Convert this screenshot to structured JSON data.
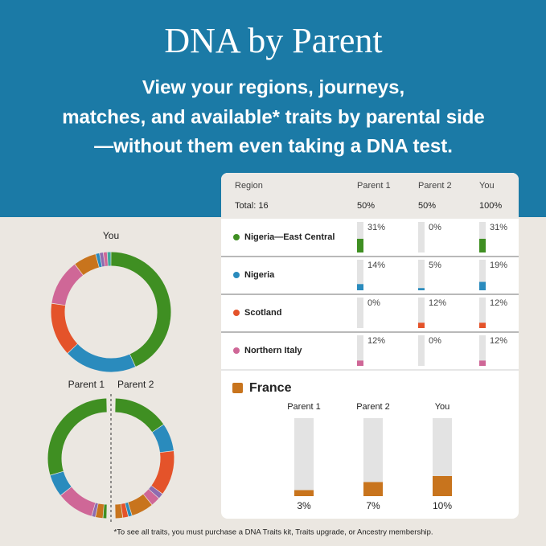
{
  "header": {
    "title": "DNA by Parent",
    "subtitle": [
      "View your regions, journeys,",
      "matches, and available* traits by parental side",
      "—without them even taking a DNA test."
    ]
  },
  "donuts": {
    "you": {
      "label": "You",
      "segments": [
        {
          "color": "#3f8f22",
          "value": 42
        },
        {
          "color": "#2a8bbd",
          "value": 19
        },
        {
          "color": "#e4532a",
          "value": 14
        },
        {
          "color": "#cf6797",
          "value": 12
        },
        {
          "color": "#c8741d",
          "value": 6
        },
        {
          "color": "#2a8bbd",
          "value": 1
        },
        {
          "color": "#8e6bb0",
          "value": 1
        },
        {
          "color": "#cf6797",
          "value": 1
        },
        {
          "color": "#3fa9a0",
          "value": 1
        }
      ]
    },
    "parent1": {
      "label": "Parent 1",
      "segments": [
        {
          "color": "#3f8f22",
          "value": 58
        },
        {
          "color": "#2a8bbd",
          "value": 12
        },
        {
          "color": "#cf6797",
          "value": 20
        },
        {
          "color": "#8e6bb0",
          "value": 2
        },
        {
          "color": "#c8741d",
          "value": 4
        },
        {
          "color": "#3f8f22",
          "value": 2
        }
      ]
    },
    "parent2": {
      "label": "Parent 2",
      "segments": [
        {
          "color": "#3f8f22",
          "value": 30
        },
        {
          "color": "#2a8bbd",
          "value": 15
        },
        {
          "color": "#e4532a",
          "value": 24
        },
        {
          "color": "#8e6bb0",
          "value": 3
        },
        {
          "color": "#cf6797",
          "value": 5
        },
        {
          "color": "#c8741d",
          "value": 12
        },
        {
          "color": "#2a8bbd",
          "value": 2
        },
        {
          "color": "#e4532a",
          "value": 3
        },
        {
          "color": "#c8741d",
          "value": 4
        }
      ]
    }
  },
  "table": {
    "columns": [
      "Region",
      "Parent 1",
      "Parent 2",
      "You"
    ],
    "total": [
      "Total: 16",
      "50%",
      "50%",
      "100%"
    ],
    "rows": [
      {
        "region": "Nigeria—East Central",
        "color": "#3f8f22",
        "values": [
          31,
          0,
          31
        ],
        "value_labels": [
          "31%",
          "0%",
          "31%"
        ]
      },
      {
        "region": "Nigeria",
        "color": "#2a8bbd",
        "values": [
          14,
          5,
          19
        ],
        "value_labels": [
          "14%",
          "5%",
          "19%"
        ]
      },
      {
        "region": "Scotland",
        "color": "#e4532a",
        "values": [
          0,
          12,
          12
        ],
        "value_labels": [
          "0%",
          "12%",
          "12%"
        ]
      },
      {
        "region": "Northern Italy",
        "color": "#cf6797",
        "values": [
          12,
          0,
          12
        ],
        "value_labels": [
          "12%",
          "0%",
          "12%"
        ]
      }
    ]
  },
  "detail": {
    "region": "France",
    "color": "#c8741d",
    "columns": [
      "Parent 1",
      "Parent 2",
      "You"
    ],
    "values": [
      3,
      7,
      10
    ],
    "value_labels": [
      "3%",
      "7%",
      "10%"
    ]
  },
  "footnote": "*To see all traits, you must purchase a DNA Traits kit, Traits upgrade, or Ancestry membership."
}
